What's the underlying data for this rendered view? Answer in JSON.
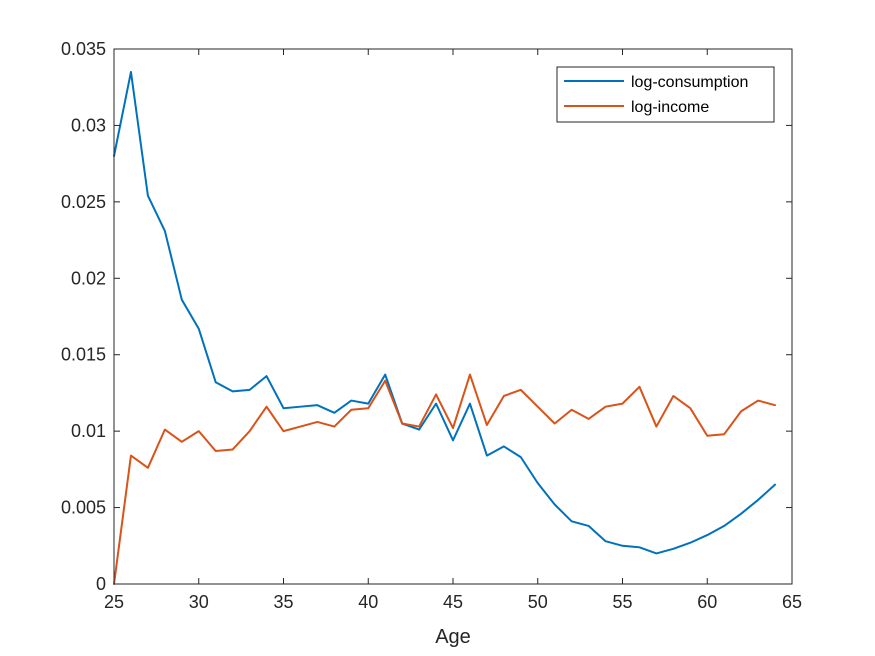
{
  "chart_data": {
    "type": "line",
    "title": "",
    "xlabel": "Age",
    "ylabel": "",
    "xlim": [
      25,
      65
    ],
    "ylim": [
      0,
      0.035
    ],
    "xticks": [
      25,
      30,
      35,
      40,
      45,
      50,
      55,
      60,
      65
    ],
    "yticks": [
      "0",
      "0.005",
      "0.01",
      "0.015",
      "0.02",
      "0.025",
      "0.03",
      "0.035"
    ],
    "grid": false,
    "legend_position": "top-right",
    "x": [
      25,
      26,
      27,
      28,
      29,
      30,
      31,
      32,
      33,
      34,
      35,
      36,
      37,
      38,
      39,
      40,
      41,
      42,
      43,
      44,
      45,
      46,
      47,
      48,
      49,
      50,
      51,
      52,
      53,
      54,
      55,
      56,
      57,
      58,
      59,
      60,
      61,
      62,
      63,
      64
    ],
    "series": [
      {
        "name": "log-consumption",
        "color": "#0072BD",
        "values": [
          0.028,
          0.0335,
          0.0254,
          0.0231,
          0.0186,
          0.0167,
          0.0132,
          0.0126,
          0.0127,
          0.0136,
          0.0115,
          0.0116,
          0.0117,
          0.0112,
          0.012,
          0.0118,
          0.0137,
          0.0105,
          0.0101,
          0.0118,
          0.0094,
          0.0118,
          0.0084,
          0.009,
          0.0083,
          0.0066,
          0.0052,
          0.0041,
          0.0038,
          0.0028,
          0.0025,
          0.0024,
          0.002,
          0.0023,
          0.0027,
          0.0032,
          0.0038,
          0.0046,
          0.0055,
          0.0065
        ]
      },
      {
        "name": "log-income",
        "color": "#D95319",
        "values": [
          0.0,
          0.0084,
          0.0076,
          0.0101,
          0.0093,
          0.01,
          0.0087,
          0.0088,
          0.01,
          0.0116,
          0.01,
          0.0103,
          0.0106,
          0.0103,
          0.0114,
          0.0115,
          0.0133,
          0.0105,
          0.0103,
          0.0124,
          0.0102,
          0.0137,
          0.0104,
          0.0123,
          0.0127,
          0.0116,
          0.0105,
          0.0114,
          0.0108,
          0.0116,
          0.0118,
          0.0129,
          0.0103,
          0.0123,
          0.0115,
          0.0097,
          0.0098,
          0.0113,
          0.012,
          0.0117
        ]
      }
    ]
  }
}
